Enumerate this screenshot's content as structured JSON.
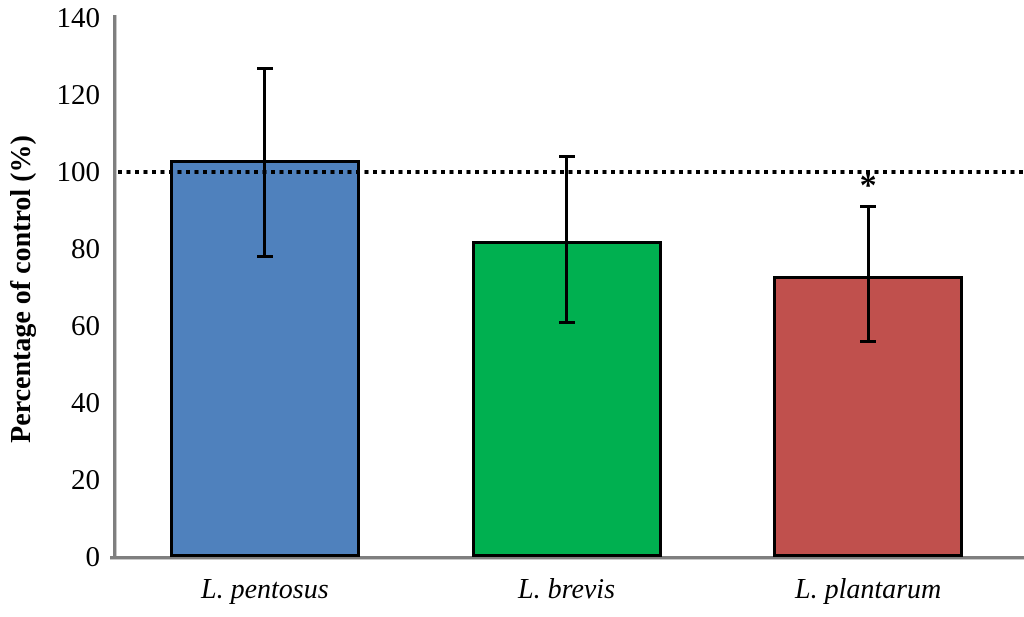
{
  "chart_data": {
    "type": "bar",
    "title": "",
    "ylabel": "Percentage of control (%)",
    "xlabel": "",
    "ylim": [
      0,
      140
    ],
    "yticks": [
      0,
      20,
      40,
      60,
      80,
      100,
      120,
      140
    ],
    "reference_line": 100,
    "grid": "off",
    "legend": "none",
    "categories": [
      "L. pentosus",
      "L. brevis",
      "L. plantarum"
    ],
    "values": [
      103,
      82,
      73
    ],
    "error_high": [
      127,
      104,
      91
    ],
    "error_low": [
      78,
      61,
      56
    ],
    "annotations": [
      "",
      "",
      "*"
    ],
    "bar_colors": [
      "#4F81BD",
      "#00B050",
      "#C0504D"
    ],
    "bar_border_color": "#000000",
    "error_bar_color": "#000000",
    "reference_line_color": "#000000",
    "axis_color": "#7F7F7F"
  }
}
